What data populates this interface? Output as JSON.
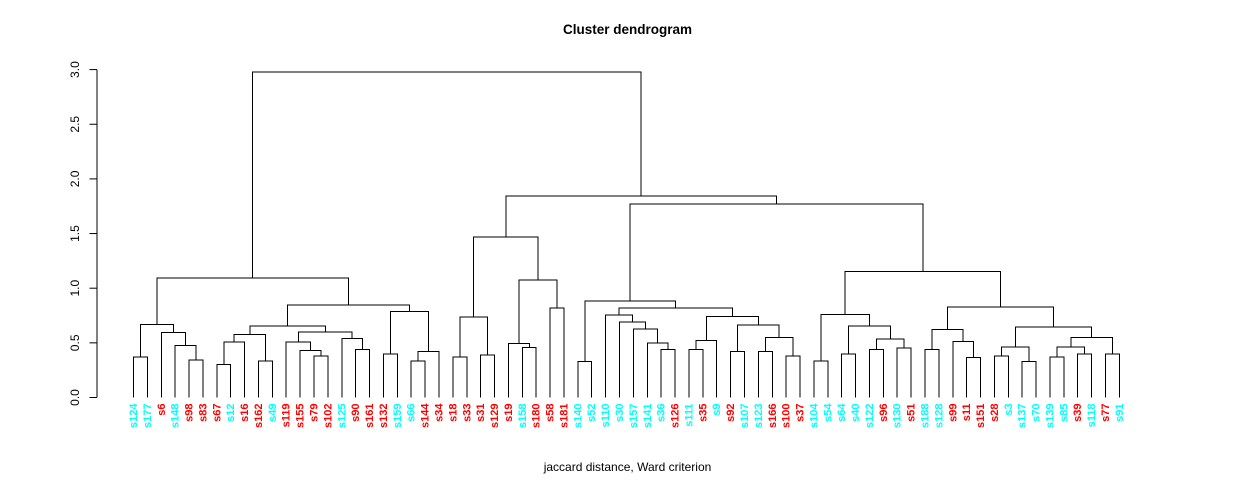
{
  "chart_data": {
    "type": "dendrogram",
    "title": "Cluster dendrogram",
    "xlabel": "jaccard distance, Ward criterion",
    "ylabel": "",
    "ylim": [
      0.0,
      3.0
    ],
    "yticks": [
      {
        "value": 0.0,
        "label": "0.0"
      },
      {
        "value": 0.5,
        "label": "0.5"
      },
      {
        "value": 1.0,
        "label": "1.0"
      },
      {
        "value": 1.5,
        "label": "1.5"
      },
      {
        "value": 2.0,
        "label": "2.0"
      },
      {
        "value": 2.5,
        "label": "2.5"
      },
      {
        "value": 3.0,
        "label": "3.0"
      }
    ],
    "grid": false,
    "legend": "none",
    "palette": {
      "red": "#FF0000",
      "cyan": "#00FFFF",
      "line": "#000000"
    },
    "leaves": [
      {
        "label": "s124",
        "color": "cyan"
      },
      {
        "label": "s177",
        "color": "cyan"
      },
      {
        "label": "s6",
        "color": "red"
      },
      {
        "label": "s148",
        "color": "cyan"
      },
      {
        "label": "s98",
        "color": "red"
      },
      {
        "label": "s83",
        "color": "red"
      },
      {
        "label": "s67",
        "color": "red"
      },
      {
        "label": "s12",
        "color": "cyan"
      },
      {
        "label": "s16",
        "color": "red"
      },
      {
        "label": "s162",
        "color": "red"
      },
      {
        "label": "s49",
        "color": "cyan"
      },
      {
        "label": "s119",
        "color": "red"
      },
      {
        "label": "s155",
        "color": "red"
      },
      {
        "label": "s79",
        "color": "red"
      },
      {
        "label": "s102",
        "color": "red"
      },
      {
        "label": "s125",
        "color": "cyan"
      },
      {
        "label": "s90",
        "color": "red"
      },
      {
        "label": "s161",
        "color": "red"
      },
      {
        "label": "s132",
        "color": "red"
      },
      {
        "label": "s159",
        "color": "cyan"
      },
      {
        "label": "s66",
        "color": "cyan"
      },
      {
        "label": "s144",
        "color": "red"
      },
      {
        "label": "s34",
        "color": "red"
      },
      {
        "label": "s18",
        "color": "red"
      },
      {
        "label": "s33",
        "color": "red"
      },
      {
        "label": "s31",
        "color": "red"
      },
      {
        "label": "s129",
        "color": "red"
      },
      {
        "label": "s19",
        "color": "red"
      },
      {
        "label": "s158",
        "color": "cyan"
      },
      {
        "label": "s180",
        "color": "red"
      },
      {
        "label": "s58",
        "color": "red"
      },
      {
        "label": "s181",
        "color": "red"
      },
      {
        "label": "s140",
        "color": "cyan"
      },
      {
        "label": "s52",
        "color": "cyan"
      },
      {
        "label": "s110",
        "color": "cyan"
      },
      {
        "label": "s30",
        "color": "cyan"
      },
      {
        "label": "s157",
        "color": "cyan"
      },
      {
        "label": "s141",
        "color": "cyan"
      },
      {
        "label": "s36",
        "color": "cyan"
      },
      {
        "label": "s126",
        "color": "red"
      },
      {
        "label": "s111",
        "color": "cyan"
      },
      {
        "label": "s35",
        "color": "red"
      },
      {
        "label": "s9",
        "color": "cyan"
      },
      {
        "label": "s92",
        "color": "red"
      },
      {
        "label": "s107",
        "color": "cyan"
      },
      {
        "label": "s123",
        "color": "cyan"
      },
      {
        "label": "s166",
        "color": "red"
      },
      {
        "label": "s100",
        "color": "red"
      },
      {
        "label": "s37",
        "color": "red"
      },
      {
        "label": "s104",
        "color": "cyan"
      },
      {
        "label": "s54",
        "color": "cyan"
      },
      {
        "label": "s64",
        "color": "cyan"
      },
      {
        "label": "s40",
        "color": "cyan"
      },
      {
        "label": "s122",
        "color": "cyan"
      },
      {
        "label": "s96",
        "color": "red"
      },
      {
        "label": "s130",
        "color": "cyan"
      },
      {
        "label": "s51",
        "color": "red"
      },
      {
        "label": "s188",
        "color": "cyan"
      },
      {
        "label": "s128",
        "color": "cyan"
      },
      {
        "label": "s99",
        "color": "red"
      },
      {
        "label": "s11",
        "color": "red"
      },
      {
        "label": "s151",
        "color": "red"
      },
      {
        "label": "s28",
        "color": "red"
      },
      {
        "label": "s3",
        "color": "cyan"
      },
      {
        "label": "s137",
        "color": "cyan"
      },
      {
        "label": "s70",
        "color": "cyan"
      },
      {
        "label": "s139",
        "color": "cyan"
      },
      {
        "label": "s85",
        "color": "cyan"
      },
      {
        "label": "s39",
        "color": "red"
      },
      {
        "label": "s118",
        "color": "cyan"
      },
      {
        "label": "s77",
        "color": "red"
      },
      {
        "label": "s91",
        "color": "cyan"
      }
    ],
    "merges": [
      2.98,
      [
        1.095,
        [
          0.67,
          [
            0.37,
            "s124",
            "s177"
          ],
          [
            0.595,
            "s6",
            [
              0.478,
              "s148",
              [
                0.344,
                "s98",
                "s83"
              ]
            ]
          ]
        ],
        [
          0.845,
          [
            0.655,
            [
              0.575,
              [
                0.51,
                [
                  0.3,
                  "s67",
                  "s12"
                ],
                "s16"
              ],
              [
                0.335,
                "s162",
                "s49"
              ]
            ],
            [
              0.6,
              [
                0.51,
                "s119",
                [
                  0.43,
                  "s155",
                  [
                    0.38,
                    "s79",
                    "s102"
                  ]
                ]
              ],
              [
                0.54,
                "s125",
                [
                  0.44,
                  "s90",
                  "s161"
                ]
              ]
            ]
          ],
          [
            0.787,
            [
              0.4,
              "s132",
              "s159"
            ],
            [
              0.42,
              [
                0.335,
                "s66",
                "s144"
              ],
              "s34"
            ]
          ]
        ]
      ],
      [
        1.845,
        [
          1.47,
          [
            0.737,
            [
              0.37,
              "s18",
              "s33"
            ],
            [
              0.39,
              "s31",
              "s129"
            ]
          ],
          [
            1.073,
            [
              0.494,
              "s19",
              [
                0.458,
                "s158",
                "s180"
              ]
            ],
            [
              0.817,
              "s58",
              "s181"
            ]
          ]
        ],
        [
          1.77,
          [
            0.885,
            [
              0.33,
              "s140",
              "s52"
            ],
            [
              0.82,
              [
                0.755,
                "s110",
                [
                  0.69,
                  "s30",
                  [
                    0.625,
                    "s157",
                    [
                      0.5,
                      "s141",
                      [
                        0.44,
                        "s36",
                        "s126"
                      ]
                    ]
                  ]
                ]
              ],
              [
                0.74,
                [
                  0.52,
                  [
                    0.44,
                    "s111",
                    "s35"
                  ],
                  "s9"
                ],
                [
                  0.664,
                  [
                    0.42,
                    "s92",
                    "s107"
                  ],
                  [
                    0.55,
                    [
                      0.42,
                      "s123",
                      "s166"
                    ],
                    [
                      0.38,
                      "s100",
                      "s37"
                    ]
                  ]
                ]
              ]
            ]
          ],
          [
            1.153,
            [
              0.761,
              [
                0.335,
                "s104",
                "s54"
              ],
              [
                0.655,
                [
                  0.396,
                  "s64",
                  "s40"
                ],
                [
                  0.533,
                  [
                    0.44,
                    "s122",
                    "s96"
                  ],
                  [
                    0.451,
                    "s130",
                    "s51"
                  ]
                ]
              ]
            ],
            [
              0.829,
              [
                0.62,
                [
                  0.44,
                  "s188",
                  "s128"
                ],
                [
                  0.512,
                  "s99",
                  [
                    0.366,
                    "s11",
                    "s151"
                  ]
                ]
              ],
              [
                0.646,
                [
                  0.463,
                  [
                    0.38,
                    "s28",
                    "s3"
                  ],
                  [
                    0.33,
                    "s137",
                    "s70"
                  ]
                ],
                [
                  0.549,
                  [
                    0.46,
                    [
                      0.37,
                      "s139",
                      "s85"
                    ],
                    [
                      0.4,
                      "s39",
                      "s118"
                    ]
                  ],
                  [
                    0.4,
                    "s77",
                    "s91"
                  ]
                ]
              ]
            ]
          ]
        ]
      ]
    ]
  }
}
